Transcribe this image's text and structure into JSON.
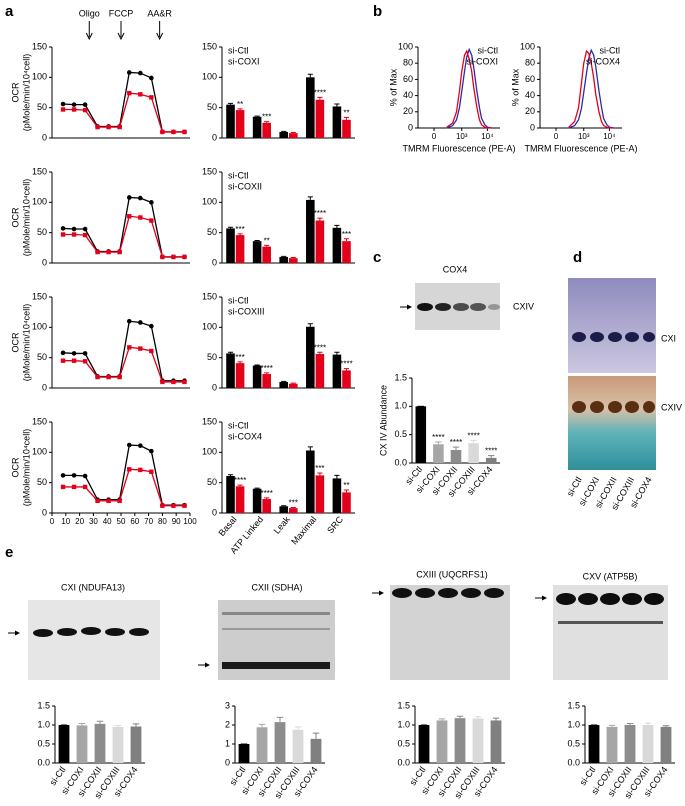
{
  "panel_labels": [
    "a",
    "b",
    "c",
    "d",
    "e"
  ],
  "chart_data": [
    {
      "type": "line",
      "ylabel": [
        "OCR",
        "(pMole/min/10⁴cell)"
      ],
      "x": [
        8,
        16,
        24,
        33,
        41,
        49,
        56,
        64,
        72,
        80,
        88,
        96
      ],
      "xlim": [
        0,
        100
      ],
      "ylim": [
        0,
        150
      ],
      "yticks": [
        0,
        50,
        100,
        150
      ],
      "annotations": [
        {
          "text": "Oligo",
          "x": 27
        },
        {
          "text": "FCCP",
          "x": 50
        },
        {
          "text": "AA&R",
          "x": 78
        }
      ],
      "series": [
        {
          "color": "#000000",
          "marker": "circle",
          "values": [
            56,
            55,
            55,
            19,
            19,
            19,
            108,
            107,
            99,
            10,
            10,
            10
          ]
        },
        {
          "color": "#e3001b",
          "marker": "square",
          "values": [
            47,
            47,
            46,
            18,
            18,
            18,
            74,
            72,
            67,
            10,
            10,
            10
          ]
        }
      ]
    },
    {
      "type": "line",
      "ylabel": [
        "OCR",
        "(pMole/min/10⁴cell)"
      ],
      "x": [
        8,
        16,
        24,
        33,
        41,
        49,
        56,
        64,
        72,
        80,
        88,
        96
      ],
      "xlim": [
        0,
        100
      ],
      "ylim": [
        0,
        150
      ],
      "yticks": [
        0,
        50,
        100,
        150
      ],
      "series": [
        {
          "color": "#000000",
          "marker": "circle",
          "values": [
            57,
            56,
            56,
            19,
            19,
            19,
            108,
            107,
            100,
            10,
            10,
            10
          ]
        },
        {
          "color": "#e3001b",
          "marker": "square",
          "values": [
            47,
            47,
            46,
            18,
            18,
            18,
            77,
            75,
            70,
            10,
            10,
            10
          ]
        }
      ]
    },
    {
      "type": "line",
      "ylabel": [
        "OCR",
        "(pMole/min/10⁴cell)"
      ],
      "x": [
        8,
        16,
        24,
        33,
        41,
        49,
        56,
        64,
        72,
        80,
        88,
        96
      ],
      "xlim": [
        0,
        100
      ],
      "ylim": [
        0,
        150
      ],
      "yticks": [
        0,
        50,
        100,
        150
      ],
      "series": [
        {
          "color": "#000000",
          "marker": "circle",
          "values": [
            58,
            57,
            57,
            19,
            19,
            19,
            110,
            108,
            102,
            12,
            12,
            12
          ]
        },
        {
          "color": "#e3001b",
          "marker": "square",
          "values": [
            45,
            45,
            44,
            18,
            18,
            18,
            67,
            65,
            61,
            10,
            10,
            10
          ]
        }
      ]
    },
    {
      "type": "line",
      "ylabel": [
        "OCR",
        "(pMole/min/10⁴cell)"
      ],
      "x": [
        8,
        16,
        24,
        33,
        41,
        49,
        56,
        64,
        72,
        80,
        88,
        96
      ],
      "xlim": [
        0,
        100
      ],
      "ylim": [
        0,
        150
      ],
      "yticks": [
        0,
        50,
        100,
        150
      ],
      "xticks": [
        0,
        10,
        20,
        30,
        40,
        50,
        60,
        70,
        80,
        90,
        100
      ],
      "series": [
        {
          "color": "#000000",
          "marker": "circle",
          "values": [
            62,
            62,
            61,
            22,
            22,
            22,
            112,
            111,
            102,
            13,
            13,
            13
          ]
        },
        {
          "color": "#e3001b",
          "marker": "square",
          "values": [
            43,
            43,
            43,
            20,
            20,
            20,
            72,
            71,
            68,
            12,
            12,
            12
          ]
        }
      ]
    },
    {
      "type": "bar",
      "ylim": [
        0,
        150
      ],
      "yticks": [
        0,
        50,
        100,
        150
      ],
      "legend": "upper left",
      "series": [
        {
          "name": "si-Ctl",
          "color": "#000000",
          "values": [
            55,
            35,
            10,
            100,
            52
          ],
          "errors": [
            2,
            1,
            1,
            5,
            4
          ]
        },
        {
          "name": "si-COXI",
          "color": "#e3001b",
          "values": [
            46,
            25,
            8,
            63,
            30
          ],
          "errors": [
            2,
            2,
            1,
            4,
            4
          ],
          "annotations": [
            "**",
            "***",
            null,
            "****",
            "**"
          ]
        }
      ]
    },
    {
      "type": "bar",
      "ylim": [
        0,
        150
      ],
      "yticks": [
        0,
        50,
        100,
        150
      ],
      "legend": "upper left",
      "series": [
        {
          "name": "si-Ctl",
          "color": "#000000",
          "values": [
            57,
            36,
            10,
            104,
            58
          ],
          "errors": [
            2,
            1,
            1,
            5,
            4
          ]
        },
        {
          "name": "si-COXII",
          "color": "#e3001b",
          "values": [
            46,
            27,
            8,
            70,
            36
          ],
          "errors": [
            2,
            2,
            1,
            4,
            4
          ],
          "annotations": [
            "***",
            "**",
            null,
            "****",
            "***"
          ]
        }
      ]
    },
    {
      "type": "bar",
      "ylim": [
        0,
        150
      ],
      "yticks": [
        0,
        50,
        100,
        150
      ],
      "legend": "upper left",
      "series": [
        {
          "name": "si-Ctl",
          "color": "#000000",
          "values": [
            57,
            37,
            10,
            101,
            55
          ],
          "errors": [
            2,
            1,
            1,
            5,
            4
          ]
        },
        {
          "name": "si-COXIII",
          "color": "#e3001b",
          "values": [
            41,
            23,
            7,
            56,
            29
          ],
          "errors": [
            2,
            2,
            1,
            3,
            3
          ],
          "annotations": [
            "***",
            "****",
            null,
            "****",
            "****"
          ]
        }
      ]
    },
    {
      "type": "bar",
      "ylim": [
        0,
        150
      ],
      "yticks": [
        0,
        50,
        100,
        150
      ],
      "legend": "upper left",
      "categories": [
        "Basal",
        "ATP Linked",
        "Leak",
        "Maximal",
        "SRC"
      ],
      "series": [
        {
          "name": "si-Ctl",
          "color": "#000000",
          "values": [
            61,
            40,
            11,
            103,
            57
          ],
          "errors": [
            2,
            1,
            1,
            6,
            5
          ]
        },
        {
          "name": "si-COX4",
          "color": "#e3001b",
          "values": [
            44,
            23,
            8,
            62,
            34
          ],
          "errors": [
            2,
            2,
            1,
            4,
            4
          ],
          "annotations": [
            "****",
            "****",
            "***",
            "***",
            "**"
          ]
        }
      ]
    },
    {
      "type": "line",
      "xscale": "symlog",
      "xlabel": "TMRM Fluorescence (PE-A)",
      "ylabel": [
        "% of Max"
      ],
      "legend": "upper right",
      "x": [
        200,
        400,
        600,
        800,
        1000,
        1300,
        1600,
        2000,
        2500,
        3000,
        4000,
        5000,
        6000,
        8000,
        10000,
        15000
      ],
      "xlim": [
        -300,
        30000
      ],
      "xticks": [
        0,
        {
          "value": 1000,
          "label": "10³"
        },
        {
          "value": 10000,
          "label": "10⁴"
        }
      ],
      "ylim": [
        0,
        100
      ],
      "yticks": [
        0,
        20,
        40,
        60,
        80,
        100
      ],
      "series": [
        {
          "name": "si-Ctl",
          "color": "#2b2ba8",
          "values": [
            0,
            3,
            10,
            25,
            45,
            70,
            88,
            97,
            90,
            75,
            45,
            25,
            12,
            4,
            1,
            0
          ]
        },
        {
          "name": "si-COXI",
          "color": "#e3001b",
          "values": [
            1,
            6,
            20,
            45,
            70,
            90,
            95,
            85,
            70,
            50,
            25,
            10,
            4,
            1,
            0,
            0
          ]
        }
      ]
    },
    {
      "type": "line",
      "xscale": "symlog",
      "xlabel": "TMRM Fluorescence (PE-A)",
      "ylabel": [
        "% of Max"
      ],
      "legend": "upper right",
      "x": [
        200,
        400,
        600,
        800,
        1000,
        1300,
        1600,
        2000,
        2500,
        3000,
        4000,
        5000,
        6000,
        8000,
        10000,
        15000
      ],
      "xlim": [
        -300,
        30000
      ],
      "xticks": [
        0,
        {
          "value": 1000,
          "label": "10³"
        },
        {
          "value": 10000,
          "label": "10⁴"
        }
      ],
      "ylim": [
        0,
        100
      ],
      "yticks": [
        0,
        20,
        40,
        60,
        80,
        100
      ],
      "series": [
        {
          "name": "si-Ctl",
          "color": "#2b2ba8",
          "values": [
            0,
            3,
            10,
            24,
            44,
            68,
            86,
            96,
            90,
            76,
            46,
            26,
            12,
            4,
            1,
            0
          ]
        },
        {
          "name": "si-COX4",
          "color": "#e3001b",
          "values": [
            1,
            8,
            25,
            55,
            80,
            95,
            92,
            80,
            62,
            42,
            20,
            8,
            3,
            1,
            0,
            0
          ]
        }
      ]
    },
    {
      "type": "bar",
      "ylabel": [
        "CX IV Abundance"
      ],
      "categories": [
        "si-Ctl",
        "si-COXI",
        "si-COXII",
        "si-COXIII",
        "si-COX4"
      ],
      "values": [
        1,
        0.33,
        0.23,
        0.35,
        0.09
      ],
      "errors": [
        0,
        0.04,
        0.05,
        0.05,
        0.04
      ],
      "annotations": [
        null,
        "****",
        "****",
        "****",
        "****"
      ],
      "colors": [
        "#000000",
        "#a6a6a6",
        "#8c8c8c",
        "#d9d9d9",
        "#808080"
      ],
      "ylim": [
        0,
        1.5
      ],
      "yticks": [
        {
          "value": 0,
          "label": "0.0"
        },
        0.5,
        {
          "value": 1,
          "label": "1.0"
        },
        1.5
      ]
    },
    {
      "type": "bar",
      "categories": [
        "si-Ctl",
        "si-COXI",
        "si-COXII",
        "si-COXIII",
        "si-COX4"
      ],
      "values": [
        1,
        0.99,
        1.03,
        0.95,
        0.96
      ],
      "errors": [
        0,
        0.05,
        0.07,
        0.04,
        0.07
      ],
      "colors": [
        "#000000",
        "#a6a6a6",
        "#8c8c8c",
        "#d9d9d9",
        "#808080"
      ],
      "ylim": [
        0,
        1.5
      ],
      "yticks": [
        {
          "value": 0,
          "label": "0.0"
        },
        0.5,
        {
          "value": 1,
          "label": "1.0"
        },
        1.5
      ]
    },
    {
      "type": "bar",
      "categories": [
        "si-Ctl",
        "si-COXI",
        "si-COXII",
        "si-COXIII",
        "si-COX4"
      ],
      "values": [
        1,
        1.88,
        2.15,
        1.75,
        1.27
      ],
      "errors": [
        0,
        0.15,
        0.25,
        0.15,
        0.3
      ],
      "colors": [
        "#000000",
        "#a6a6a6",
        "#8c8c8c",
        "#d9d9d9",
        "#808080"
      ],
      "ylim": [
        0,
        3
      ],
      "yticks": [
        0,
        1,
        2,
        3
      ]
    },
    {
      "type": "bar",
      "categories": [
        "si-Ctl",
        "si-COXI",
        "si-COXII",
        "si-COXIII",
        "si-COX4"
      ],
      "values": [
        1,
        1.12,
        1.18,
        1.17,
        1.12
      ],
      "errors": [
        0,
        0.04,
        0.05,
        0.05,
        0.06
      ],
      "colors": [
        "#000000",
        "#a6a6a6",
        "#8c8c8c",
        "#d9d9d9",
        "#808080"
      ],
      "ylim": [
        0,
        1.5
      ],
      "yticks": [
        {
          "value": 0,
          "label": "0.0"
        },
        0.5,
        {
          "value": 1,
          "label": "1.0"
        },
        1.5
      ]
    },
    {
      "type": "bar",
      "categories": [
        "si-Ctl",
        "si-COXI",
        "si-COXII",
        "si-COXIII",
        "si-COX4"
      ],
      "values": [
        1,
        0.95,
        1.0,
        1.0,
        0.95
      ],
      "errors": [
        0,
        0.04,
        0.04,
        0.05,
        0.03
      ],
      "colors": [
        "#000000",
        "#a6a6a6",
        "#8c8c8c",
        "#d9d9d9",
        "#808080"
      ],
      "ylim": [
        0,
        1.5
      ],
      "yticks": [
        {
          "value": 0,
          "label": "0.0"
        },
        0.5,
        {
          "value": 1,
          "label": "1.0"
        },
        1.5
      ]
    }
  ],
  "blots": {
    "c": {
      "title": "COX4",
      "band": "CXIV"
    },
    "d": {
      "bands": [
        "CXI",
        "CXIV"
      ],
      "lanes": [
        "si-Ctl",
        "si-COXI",
        "si-COXII",
        "si-COXIII",
        "si-COX4"
      ]
    },
    "e": [
      {
        "title": "CXI (NDUFA13)"
      },
      {
        "title": "CXII  (SDHA)"
      },
      {
        "title": "CXIII (UQCRFS1)"
      },
      {
        "title": "CXV (ATP5B)"
      }
    ]
  }
}
